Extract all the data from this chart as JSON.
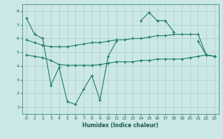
{
  "xlabel": "Humidex (Indice chaleur)",
  "xlim": [
    -0.5,
    23.5
  ],
  "ylim": [
    0.5,
    8.5
  ],
  "yticks": [
    1,
    2,
    3,
    4,
    5,
    6,
    7,
    8
  ],
  "xticks": [
    0,
    1,
    2,
    3,
    4,
    5,
    6,
    7,
    8,
    9,
    10,
    11,
    12,
    13,
    14,
    15,
    16,
    17,
    18,
    19,
    20,
    21,
    22,
    23
  ],
  "bg_color": "#cce8e6",
  "grid_color": "#aaccca",
  "line_color": "#1a7a6e",
  "line1_segments": [
    {
      "x": [
        0,
        1,
        2,
        3,
        4,
        5,
        6,
        7,
        8,
        9,
        10,
        11
      ],
      "y": [
        7.5,
        6.3,
        6.0,
        2.6,
        3.9,
        1.4,
        1.2,
        2.3,
        3.3,
        1.5,
        4.7,
        5.8
      ]
    },
    {
      "x": [
        14,
        15,
        16,
        17,
        18
      ],
      "y": [
        7.3,
        7.9,
        7.3,
        7.3,
        6.5
      ]
    },
    {
      "x": [
        21,
        22,
        23
      ],
      "y": [
        5.8,
        4.8,
        4.7
      ]
    }
  ],
  "line2_x": [
    0,
    1,
    2,
    3,
    4,
    5,
    6,
    7,
    8,
    9,
    10,
    11,
    12,
    13,
    14,
    15,
    16,
    17,
    18,
    19,
    20,
    21,
    22,
    23
  ],
  "line2_y": [
    5.9,
    5.7,
    5.5,
    5.4,
    5.4,
    5.4,
    5.5,
    5.6,
    5.7,
    5.7,
    5.8,
    5.9,
    5.9,
    6.0,
    6.0,
    6.1,
    6.2,
    6.2,
    6.3,
    6.3,
    6.3,
    6.3,
    4.8,
    4.7
  ],
  "line3_x": [
    0,
    1,
    2,
    3,
    4,
    5,
    6,
    7,
    8,
    9,
    10,
    11,
    12,
    13,
    14,
    15,
    16,
    17,
    18,
    19,
    20,
    21,
    22,
    23
  ],
  "line3_y": [
    4.8,
    4.7,
    4.6,
    4.4,
    4.1,
    4.05,
    4.05,
    4.05,
    4.05,
    4.1,
    4.2,
    4.3,
    4.3,
    4.3,
    4.4,
    4.4,
    4.5,
    4.5,
    4.5,
    4.5,
    4.6,
    4.7,
    4.8,
    4.7
  ],
  "font_color": "#1a5a52"
}
